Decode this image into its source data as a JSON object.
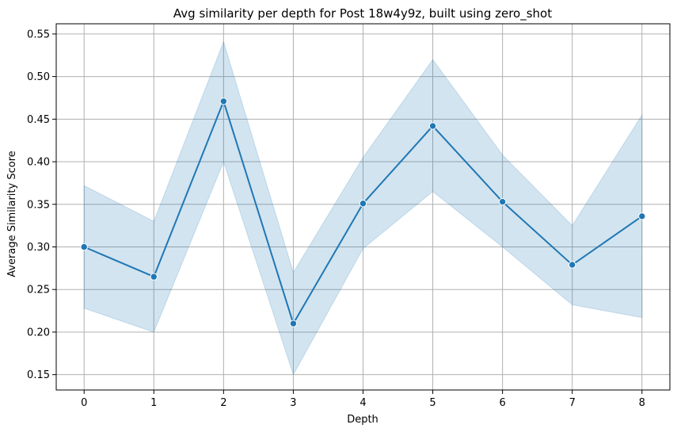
{
  "chart_data": {
    "type": "line",
    "title": "Avg similarity per depth for Post 18w4y9z, built using zero_shot",
    "xlabel": "Depth",
    "ylabel": "Average Similarity Score",
    "x": [
      0,
      1,
      2,
      3,
      4,
      5,
      6,
      7,
      8
    ],
    "xticks": [
      0,
      1,
      2,
      3,
      4,
      5,
      6,
      7,
      8
    ],
    "yticks": [
      0.15,
      0.2,
      0.25,
      0.3,
      0.35,
      0.4,
      0.45,
      0.5,
      0.55
    ],
    "ytick_labels": [
      "0.15",
      "0.20",
      "0.25",
      "0.30",
      "0.35",
      "0.40",
      "0.45",
      "0.50",
      "0.55"
    ],
    "xlim": [
      -0.4,
      8.4
    ],
    "ylim": [
      0.132,
      0.562
    ],
    "grid": true,
    "series": [
      {
        "values": [
          0.3,
          0.265,
          0.471,
          0.21,
          0.351,
          0.442,
          0.353,
          0.279,
          0.336
        ],
        "ci_lower": [
          0.228,
          0.2,
          0.4,
          0.15,
          0.298,
          0.365,
          0.3,
          0.232,
          0.217
        ],
        "ci_upper": [
          0.372,
          0.33,
          0.541,
          0.27,
          0.405,
          0.52,
          0.408,
          0.325,
          0.455
        ],
        "color": "#1f77b4"
      }
    ],
    "colors": {
      "band": "#1f77b4",
      "grid": "#b0b0b0",
      "axis": "#000000"
    }
  }
}
